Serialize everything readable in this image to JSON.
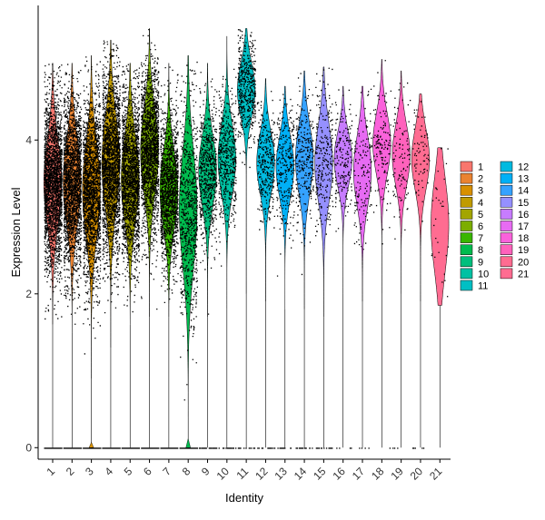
{
  "chart_data": {
    "type": "violin",
    "xlabel": "Identity",
    "ylabel": "Expression Level",
    "y_ticks": [
      "0",
      "2",
      "4"
    ],
    "ylim": [
      -0.15,
      5.75
    ],
    "legend_position": "right",
    "categories": [
      "1",
      "2",
      "3",
      "4",
      "5",
      "6",
      "7",
      "8",
      "9",
      "10",
      "11",
      "12",
      "13",
      "14",
      "15",
      "16",
      "17",
      "18",
      "19",
      "20",
      "21"
    ],
    "colors": [
      "#F8766D",
      "#EA8331",
      "#D89000",
      "#C09B00",
      "#A3A500",
      "#7CAE00",
      "#39B600",
      "#00BB4E",
      "#00BF7D",
      "#00C1A3",
      "#00BFC4",
      "#00BAE0",
      "#00B0F6",
      "#35A2FF",
      "#9590FF",
      "#C77CFF",
      "#E76BF3",
      "#FA62DB",
      "#FF62BC",
      "#FF6C91",
      "#FF6C91"
    ],
    "distributions": [
      {
        "median": 3.45,
        "spread": 0.55,
        "min": 1.6,
        "max": 5.0,
        "zero_frac": 0.08
      },
      {
        "median": 3.45,
        "spread": 0.55,
        "min": 1.5,
        "max": 5.0,
        "zero_frac": 0.08
      },
      {
        "median": 3.35,
        "spread": 0.6,
        "min": 0.9,
        "max": 5.1,
        "zero_frac": 0.15
      },
      {
        "median": 3.7,
        "spread": 0.6,
        "min": 1.3,
        "max": 5.3,
        "zero_frac": 0.08
      },
      {
        "median": 3.5,
        "spread": 0.55,
        "min": 1.6,
        "max": 5.0,
        "zero_frac": 0.08
      },
      {
        "median": 3.85,
        "spread": 0.55,
        "min": 1.7,
        "max": 5.45,
        "zero_frac": 0.08
      },
      {
        "median": 3.35,
        "spread": 0.5,
        "min": 1.7,
        "max": 5.0,
        "zero_frac": 0.06
      },
      {
        "median": 3.1,
        "spread": 0.75,
        "min": 0.4,
        "max": 5.1,
        "zero_frac": 0.25
      },
      {
        "median": 3.6,
        "spread": 0.45,
        "min": 1.7,
        "max": 5.0,
        "zero_frac": 0.05
      },
      {
        "median": 3.75,
        "spread": 0.45,
        "min": 1.8,
        "max": 5.35,
        "zero_frac": 0.05
      },
      {
        "median": 4.65,
        "spread": 0.35,
        "min": 2.0,
        "max": 5.45,
        "zero_frac": 0.03
      },
      {
        "median": 3.7,
        "spread": 0.4,
        "min": 1.9,
        "max": 4.8,
        "zero_frac": 0.04
      },
      {
        "median": 3.65,
        "spread": 0.4,
        "min": 1.8,
        "max": 4.7,
        "zero_frac": 0.04
      },
      {
        "median": 3.75,
        "spread": 0.45,
        "min": 1.8,
        "max": 4.9,
        "zero_frac": 0.04
      },
      {
        "median": 3.7,
        "spread": 0.5,
        "min": 1.7,
        "max": 4.95,
        "zero_frac": 0.05
      },
      {
        "median": 3.75,
        "spread": 0.35,
        "min": 2.0,
        "max": 4.7,
        "zero_frac": 0.03
      },
      {
        "median": 3.6,
        "spread": 0.45,
        "min": 1.9,
        "max": 4.7,
        "zero_frac": 0.04
      },
      {
        "median": 3.95,
        "spread": 0.4,
        "min": 2.0,
        "max": 5.05,
        "zero_frac": 0.02
      },
      {
        "median": 3.8,
        "spread": 0.4,
        "min": 2.0,
        "max": 4.9,
        "zero_frac": 0.02
      },
      {
        "median": 3.75,
        "spread": 0.4,
        "min": 1.9,
        "max": 4.6,
        "zero_frac": 0.05
      },
      {
        "median": 2.9,
        "spread": 0.6,
        "min": 1.85,
        "max": 3.9,
        "zero_frac": 0.0
      }
    ],
    "point_counts": [
      2600,
      2400,
      2400,
      2400,
      2200,
      2000,
      1600,
      1000,
      700,
      550,
      500,
      350,
      300,
      300,
      280,
      200,
      160,
      140,
      110,
      80,
      30
    ]
  }
}
